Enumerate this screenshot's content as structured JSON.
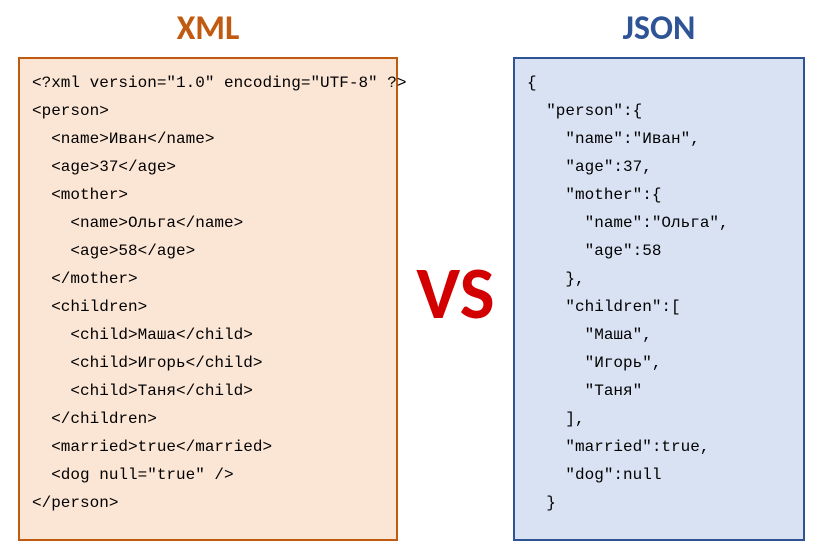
{
  "headings": {
    "xml": "XML",
    "json": "JSON"
  },
  "vs": "VS",
  "colors": {
    "xml_heading": "#c15a11",
    "json_heading": "#2f5496",
    "xml_bg": "#fbe5d5",
    "xml_border": "#c15a11",
    "json_bg": "#d9e2f3",
    "json_border": "#2f5496",
    "vs": "#d20000",
    "page_bg": "#ffffff"
  },
  "fonts": {
    "heading_size_pt": 26,
    "vs_size_pt": 56,
    "code_size_pt": 12,
    "code_family": "Consolas",
    "heading_family": "Calibri"
  },
  "xml_lines": [
    "<?xml version=\"1.0\" encoding=\"UTF-8\" ?>",
    "<person>",
    "  <name>Иван</name>",
    "  <age>37</age>",
    "  <mother>",
    "    <name>Ольга</name>",
    "    <age>58</age>",
    "  </mother>",
    "  <children>",
    "    <child>Маша</child>",
    "    <child>Игорь</child>",
    "    <child>Таня</child>",
    "  </children>",
    "  <married>true</married>",
    "  <dog null=\"true\" />",
    "</person>"
  ],
  "json_lines": [
    "{",
    "  \"person\":{",
    "    \"name\":\"Иван\",",
    "    \"age\":37,",
    "    \"mother\":{",
    "      \"name\":\"Ольга\",",
    "      \"age\":58",
    "    },",
    "    \"children\":[",
    "      \"Маша\",",
    "      \"Игорь\",",
    "      \"Таня\"",
    "    ],",
    "    \"married\":true,",
    "    \"dog\":null",
    "  }"
  ]
}
